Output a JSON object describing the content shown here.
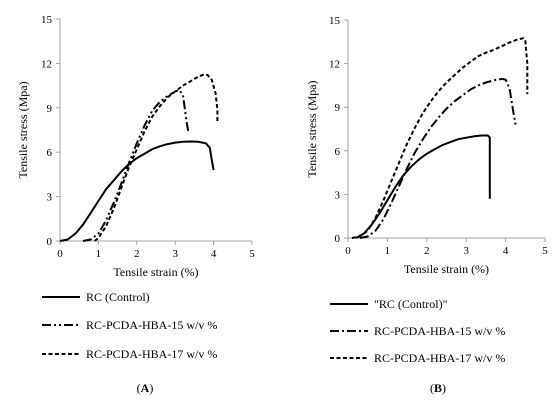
{
  "chart_data": [
    {
      "id": "A",
      "type": "line",
      "panel_label": "(A)",
      "panel_label_parts": [
        "(",
        "A",
        ")"
      ],
      "xlabel": "Tensile strain (%)",
      "ylabel": "Tensile stress (Mpa)",
      "xlim": [
        0,
        5
      ],
      "ylim": [
        0,
        15
      ],
      "xticks": [
        "0",
        "1",
        "2",
        "3",
        "4",
        "5"
      ],
      "yticks": [
        "0",
        "3",
        "6",
        "9",
        "12",
        "15"
      ],
      "grid": false,
      "legend_position": "bottom",
      "series": [
        {
          "name": "RC (Control)",
          "style": "solid",
          "points": [
            [
              0,
              0
            ],
            [
              0.2,
              0.1
            ],
            [
              0.4,
              0.5
            ],
            [
              0.6,
              1.1
            ],
            [
              0.8,
              1.9
            ],
            [
              1.0,
              2.7
            ],
            [
              1.2,
              3.5
            ],
            [
              1.4,
              4.1
            ],
            [
              1.6,
              4.7
            ],
            [
              1.8,
              5.2
            ],
            [
              2.0,
              5.6
            ],
            [
              2.2,
              5.9
            ],
            [
              2.4,
              6.2
            ],
            [
              2.6,
              6.4
            ],
            [
              2.8,
              6.55
            ],
            [
              3.0,
              6.65
            ],
            [
              3.2,
              6.7
            ],
            [
              3.4,
              6.72
            ],
            [
              3.6,
              6.7
            ],
            [
              3.8,
              6.6
            ],
            [
              3.9,
              6.3
            ],
            [
              3.95,
              5.5
            ],
            [
              4.0,
              4.8
            ]
          ]
        },
        {
          "name": "RC-PCDA-HBA-15 w/v %",
          "style": "dash-dot-dot",
          "points": [
            [
              0.6,
              0
            ],
            [
              0.8,
              0.1
            ],
            [
              1.0,
              0.5
            ],
            [
              1.2,
              1.4
            ],
            [
              1.4,
              2.6
            ],
            [
              1.6,
              3.9
            ],
            [
              1.8,
              5.3
            ],
            [
              2.0,
              6.6
            ],
            [
              2.2,
              7.8
            ],
            [
              2.4,
              8.8
            ],
            [
              2.6,
              9.4
            ],
            [
              2.8,
              9.8
            ],
            [
              3.0,
              10.1
            ],
            [
              3.1,
              10.2
            ],
            [
              3.2,
              9.9
            ],
            [
              3.3,
              8.0
            ],
            [
              3.35,
              7.3
            ]
          ]
        },
        {
          "name": "RC-PCDA-HBA-17 w/v %",
          "style": "dashed",
          "points": [
            [
              0.9,
              0
            ],
            [
              1.0,
              0.2
            ],
            [
              1.2,
              1.0
            ],
            [
              1.4,
              2.2
            ],
            [
              1.6,
              3.6
            ],
            [
              1.8,
              5.0
            ],
            [
              2.0,
              6.2
            ],
            [
              2.2,
              7.4
            ],
            [
              2.4,
              8.4
            ],
            [
              2.6,
              9.1
            ],
            [
              2.8,
              9.7
            ],
            [
              3.0,
              10.1
            ],
            [
              3.2,
              10.5
            ],
            [
              3.4,
              10.8
            ],
            [
              3.6,
              11.1
            ],
            [
              3.75,
              11.25
            ],
            [
              3.85,
              11.2
            ],
            [
              3.95,
              10.9
            ],
            [
              4.05,
              10.0
            ],
            [
              4.1,
              8.9
            ],
            [
              4.1,
              8.0
            ]
          ]
        }
      ]
    },
    {
      "id": "B",
      "type": "line",
      "panel_label": "(B)",
      "panel_label_parts": [
        "(",
        "B",
        ")"
      ],
      "xlabel": "Tensile strain (%)",
      "ylabel": "Tensile stress (Mpa)",
      "xlim": [
        0,
        5
      ],
      "ylim": [
        0,
        15
      ],
      "xticks": [
        "0",
        "1",
        "2",
        "3",
        "4",
        "5"
      ],
      "yticks": [
        "0",
        "3",
        "6",
        "9",
        "12",
        "15"
      ],
      "grid": false,
      "legend_position": "bottom",
      "series": [
        {
          "name": "\"RC (Control)\"",
          "style": "solid",
          "points": [
            [
              0.2,
              0
            ],
            [
              0.4,
              0.3
            ],
            [
              0.6,
              0.9
            ],
            [
              0.8,
              1.7
            ],
            [
              1.0,
              2.6
            ],
            [
              1.2,
              3.5
            ],
            [
              1.4,
              4.3
            ],
            [
              1.6,
              4.9
            ],
            [
              1.8,
              5.4
            ],
            [
              2.0,
              5.8
            ],
            [
              2.2,
              6.1
            ],
            [
              2.4,
              6.4
            ],
            [
              2.6,
              6.6
            ],
            [
              2.8,
              6.8
            ],
            [
              3.0,
              6.9
            ],
            [
              3.2,
              7.0
            ],
            [
              3.4,
              7.05
            ],
            [
              3.55,
              7.05
            ],
            [
              3.6,
              6.9
            ],
            [
              3.6,
              2.7
            ]
          ]
        },
        {
          "name": "RC-PCDA-HBA-15 w/v %",
          "style": "dash-dot",
          "points": [
            [
              0.3,
              0
            ],
            [
              0.5,
              0.1
            ],
            [
              0.7,
              0.5
            ],
            [
              0.9,
              1.3
            ],
            [
              1.1,
              2.4
            ],
            [
              1.3,
              3.6
            ],
            [
              1.5,
              4.8
            ],
            [
              1.7,
              5.9
            ],
            [
              1.9,
              6.8
            ],
            [
              2.1,
              7.6
            ],
            [
              2.3,
              8.3
            ],
            [
              2.5,
              8.9
            ],
            [
              2.7,
              9.4
            ],
            [
              2.9,
              9.8
            ],
            [
              3.1,
              10.2
            ],
            [
              3.3,
              10.5
            ],
            [
              3.5,
              10.7
            ],
            [
              3.7,
              10.85
            ],
            [
              3.9,
              10.95
            ],
            [
              4.0,
              10.9
            ],
            [
              4.1,
              10.3
            ],
            [
              4.2,
              8.6
            ],
            [
              4.25,
              7.8
            ]
          ]
        },
        {
          "name": "RC-PCDA-HBA-17 w/v %",
          "style": "dashed",
          "points": [
            [
              0.1,
              0
            ],
            [
              0.3,
              0.1
            ],
            [
              0.5,
              0.5
            ],
            [
              0.7,
              1.4
            ],
            [
              0.9,
              2.6
            ],
            [
              1.1,
              3.9
            ],
            [
              1.3,
              5.2
            ],
            [
              1.5,
              6.5
            ],
            [
              1.7,
              7.6
            ],
            [
              1.9,
              8.6
            ],
            [
              2.1,
              9.4
            ],
            [
              2.3,
              10.1
            ],
            [
              2.5,
              10.7
            ],
            [
              2.7,
              11.2
            ],
            [
              2.9,
              11.7
            ],
            [
              3.1,
              12.1
            ],
            [
              3.3,
              12.5
            ],
            [
              3.5,
              12.75
            ],
            [
              3.7,
              12.95
            ],
            [
              3.9,
              13.2
            ],
            [
              4.1,
              13.45
            ],
            [
              4.3,
              13.65
            ],
            [
              4.45,
              13.75
            ],
            [
              4.5,
              13.6
            ],
            [
              4.55,
              12.0
            ],
            [
              4.55,
              9.9
            ]
          ]
        }
      ]
    }
  ]
}
